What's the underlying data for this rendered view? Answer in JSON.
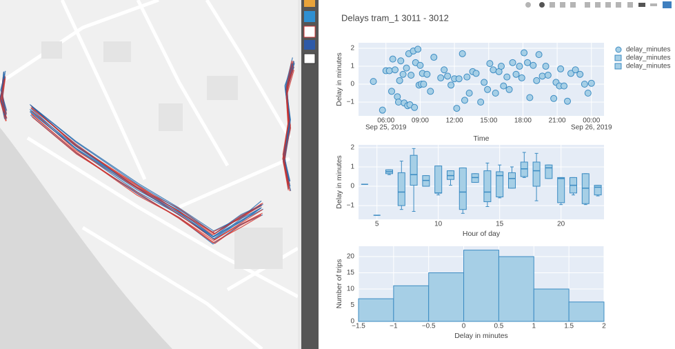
{
  "title": "Delays tram_1 3011 - 3012",
  "plot_bgcolor": "#e5ecf6",
  "chart_data": [
    {
      "type": "scatter",
      "x_title": "Time",
      "y_title": "Delay in minutes",
      "grid": true,
      "xlim": [
        3.6,
        25.1
      ],
      "ylim": [
        -1.77,
        2.31
      ],
      "xticks": [
        {
          "value": 6,
          "label": "06:00"
        },
        {
          "value": 9,
          "label": "09:00"
        },
        {
          "value": 12,
          "label": "12:00"
        },
        {
          "value": 15,
          "label": "15:00"
        },
        {
          "value": 18,
          "label": "18:00"
        },
        {
          "value": 21,
          "label": "21:00"
        },
        {
          "value": 24,
          "label": "00:00"
        }
      ],
      "xtick_dates": [
        {
          "value": 6,
          "label": "Sep 25, 2019"
        },
        {
          "value": 24,
          "label": "Sep 26, 2019"
        }
      ],
      "yticks": [
        {
          "value": -1,
          "label": "−1"
        },
        0,
        1,
        2
      ],
      "x": [
        4.9,
        5.7,
        6.0,
        6.3,
        6.5,
        6.6,
        6.8,
        7.0,
        7.1,
        7.2,
        7.3,
        7.5,
        7.6,
        7.8,
        7.9,
        8.0,
        8.1,
        8.2,
        8.4,
        8.5,
        8.6,
        8.8,
        8.9,
        9.0,
        9.1,
        9.2,
        9.3,
        9.6,
        9.9,
        10.2,
        10.8,
        11.1,
        11.4,
        11.7,
        12.0,
        12.2,
        12.4,
        12.7,
        12.9,
        13.1,
        13.3,
        13.6,
        13.9,
        14.3,
        14.6,
        14.9,
        15.1,
        15.4,
        15.6,
        15.9,
        16.1,
        16.3,
        16.6,
        16.8,
        17.1,
        17.4,
        17.7,
        17.9,
        18.1,
        18.4,
        18.6,
        18.9,
        19.2,
        19.4,
        19.7,
        20.0,
        20.2,
        20.7,
        20.9,
        21.2,
        21.3,
        21.6,
        21.9,
        22.2,
        22.6,
        23.0,
        23.4,
        23.7,
        24.0
      ],
      "series": [
        {
          "name": "delay_minutes",
          "color": "#a6cfe6",
          "line_color": "#3b8bc2",
          "values": [
            0.15,
            -1.45,
            0.75,
            0.75,
            -0.4,
            1.4,
            0.8,
            -0.7,
            -1.0,
            0.2,
            1.3,
            0.55,
            -1.05,
            0.9,
            -1.2,
            1.7,
            -1.15,
            0.5,
            1.85,
            -1.3,
            1.2,
            1.95,
            -0.05,
            1.05,
            0.0,
            0.6,
            0.0,
            0.55,
            -0.4,
            1.5,
            0.35,
            0.8,
            0.45,
            -0.05,
            0.3,
            -1.35,
            0.3,
            1.7,
            -0.9,
            0.4,
            -0.5,
            0.7,
            0.6,
            -1.0,
            0.1,
            -0.3,
            1.15,
            0.8,
            -0.5,
            0.7,
            1.0,
            -0.1,
            0.4,
            -0.3,
            1.2,
            0.55,
            1.0,
            0.35,
            1.75,
            1.2,
            -0.75,
            1.05,
            0.2,
            1.65,
            0.45,
            1.0,
            0.5,
            -0.8,
            0.1,
            -0.1,
            0.85,
            -0.1,
            -0.95,
            0.6,
            0.8,
            0.55,
            0.0,
            -0.5,
            0.05
          ]
        }
      ]
    },
    {
      "type": "box",
      "x_title": "Hour of day",
      "y_title": "Delay in minutes",
      "grid": true,
      "xlim": [
        3.5,
        23.5
      ],
      "ylim": [
        -1.71,
        2.14
      ],
      "xticks": [
        5,
        10,
        15,
        20
      ],
      "yticks": [
        {
          "value": -1,
          "label": "−1"
        },
        0,
        1,
        2
      ],
      "x": [
        4,
        5,
        6,
        7,
        8,
        9,
        10,
        11,
        12,
        13,
        14,
        15,
        16,
        17,
        18,
        19,
        20,
        21,
        22,
        23
      ],
      "series": [
        {
          "name": "delay_minutes",
          "color": "#a6cfe6",
          "line_color": "#3b8bc2",
          "lowerfence": [
            0.1,
            -1.5,
            0.6,
            -1.2,
            -1.3,
            0.0,
            -0.45,
            0.05,
            -1.4,
            0.2,
            -1.05,
            -0.6,
            -0.1,
            0.45,
            -0.75,
            0.4,
            -0.95,
            -0.45,
            -0.95,
            -0.5
          ],
          "q1": [
            0.1,
            -1.5,
            0.65,
            -1.0,
            0.05,
            0.0,
            -0.35,
            0.35,
            -1.2,
            0.2,
            -0.8,
            -0.55,
            -0.1,
            0.5,
            0.0,
            0.4,
            -0.85,
            -0.35,
            -0.9,
            -0.45
          ],
          "median": [
            0.1,
            -1.5,
            0.75,
            -0.3,
            0.6,
            0.3,
            -0.35,
            0.55,
            -0.3,
            0.45,
            -0.3,
            0.55,
            0.4,
            0.9,
            0.8,
            0.95,
            0.4,
            0.05,
            -0.1,
            -0.05
          ],
          "q3": [
            0.1,
            -1.5,
            0.85,
            0.7,
            1.6,
            0.55,
            1.05,
            0.8,
            0.95,
            0.65,
            0.8,
            0.75,
            0.7,
            1.25,
            1.25,
            1.1,
            0.45,
            0.45,
            0.65,
            0.05
          ],
          "upperfence": [
            0.1,
            -1.5,
            0.85,
            1.3,
            1.95,
            0.55,
            1.05,
            0.8,
            0.95,
            0.65,
            1.2,
            1.1,
            1.0,
            1.75,
            1.7,
            1.1,
            0.45,
            0.45,
            0.65,
            0.05
          ]
        }
      ]
    },
    {
      "type": "histogram",
      "x_title": "Delay in minutes",
      "y_title": "Number of trips",
      "grid": true,
      "xlim": [
        -1.5,
        2
      ],
      "ylim": [
        0,
        23.2
      ],
      "xticks": [
        {
          "value": -1.5,
          "label": "−1.5"
        },
        {
          "value": -1,
          "label": "−1"
        },
        {
          "value": -0.5,
          "label": "−0.5"
        },
        0,
        0.5,
        1,
        1.5,
        2
      ],
      "yticks": [
        0,
        5,
        10,
        15,
        20
      ],
      "bins": [
        -1.5,
        -1,
        -0.5,
        0,
        0.5,
        1,
        1.5,
        2
      ],
      "series": [
        {
          "name": "delay_minutes",
          "color": "#a6cfe6",
          "line_color": "#3b8bc2",
          "values": [
            7,
            11,
            15,
            22,
            20,
            10,
            6
          ]
        }
      ]
    }
  ]
}
